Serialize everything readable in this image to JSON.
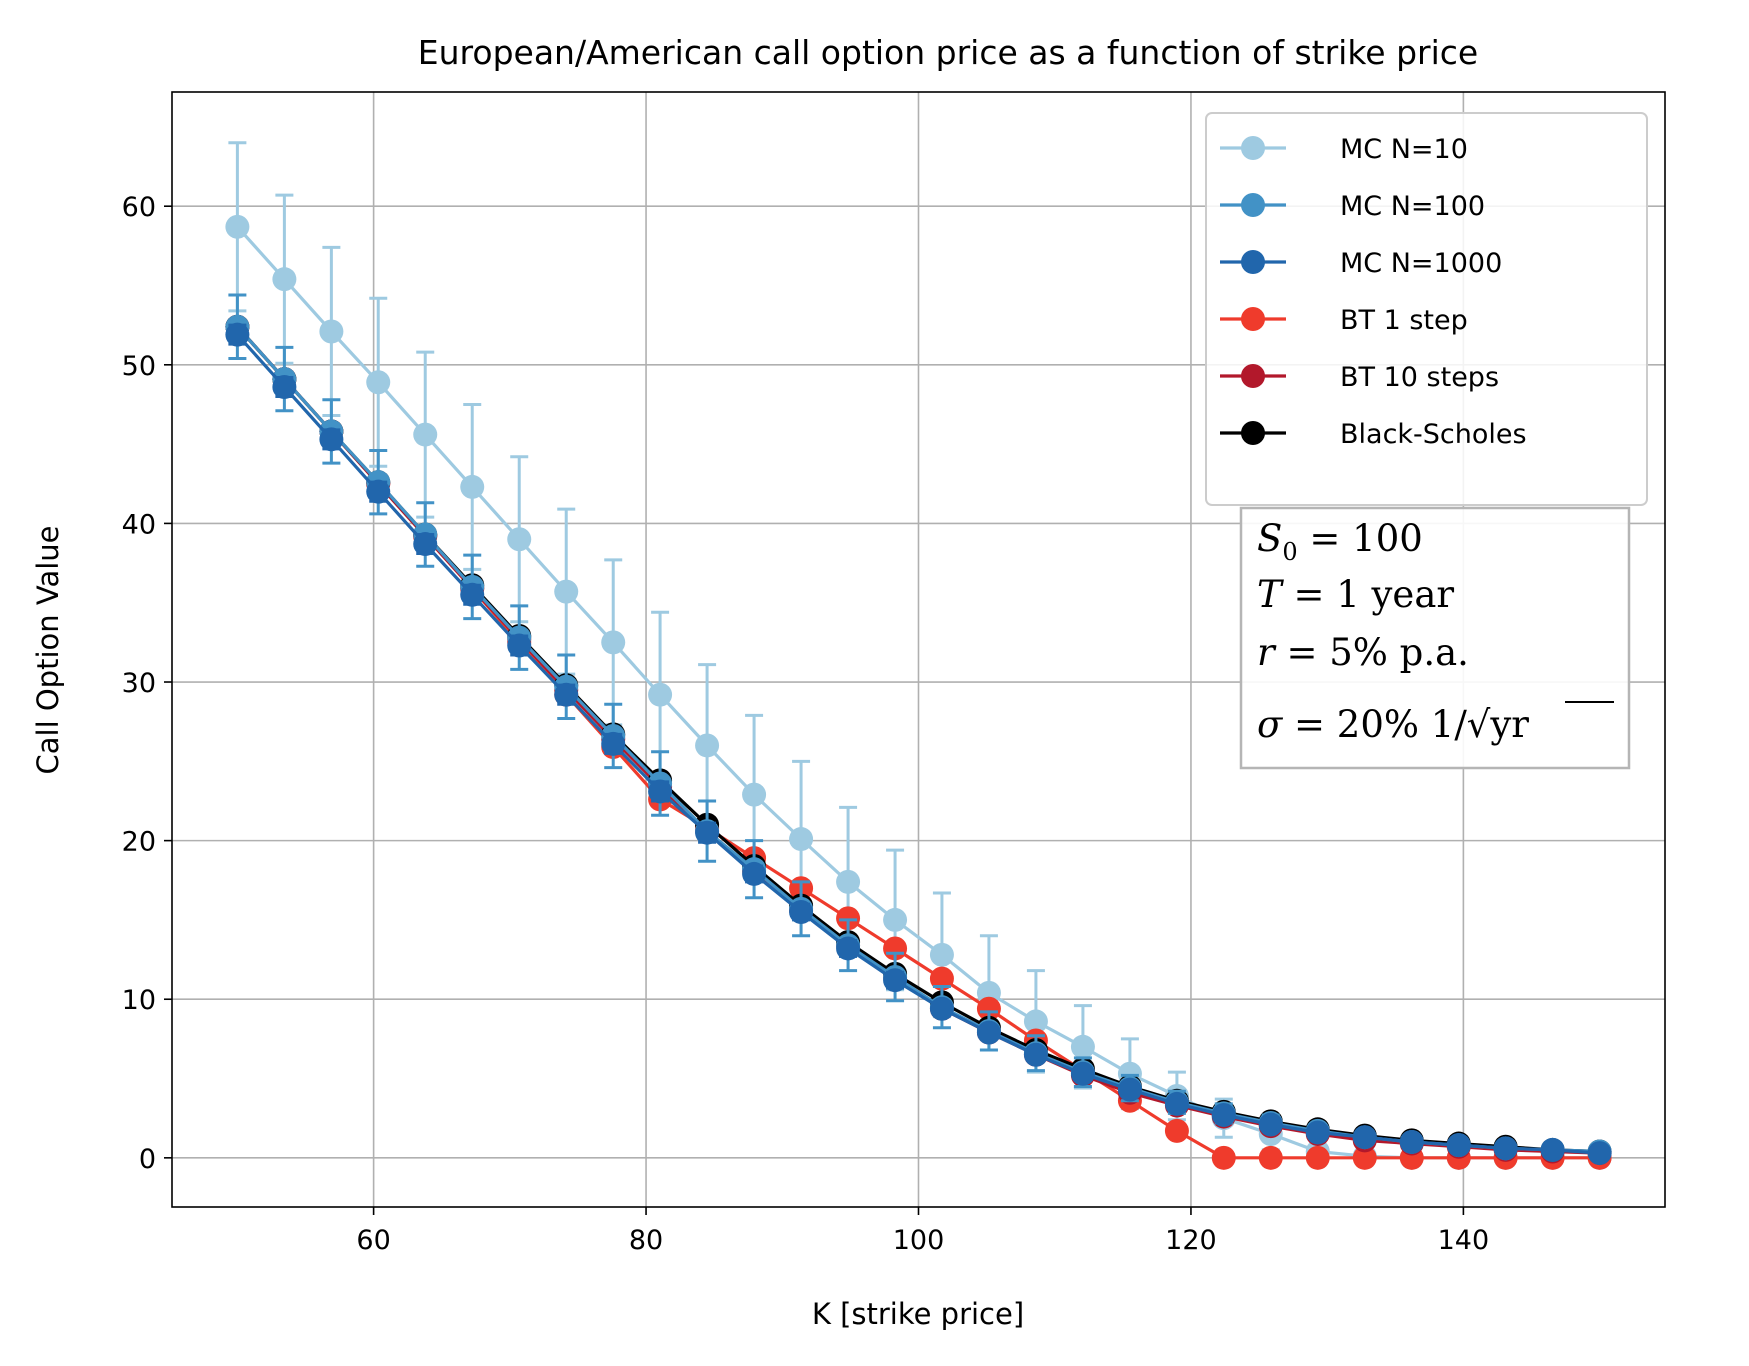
{
  "chart_data": {
    "type": "line",
    "title": "European/American call option price as a function of strike price",
    "xlabel": "K [strike price]",
    "ylabel": "Call Option Value",
    "xlim": [
      45.2,
      154.8
    ],
    "ylim": [
      -3.1,
      67.2
    ],
    "xticks": [
      60,
      80,
      100,
      120,
      140
    ],
    "yticks": [
      0,
      10,
      20,
      30,
      40,
      50,
      60
    ],
    "grid": true,
    "legend_position": "upper right",
    "x": [
      50.0,
      53.45,
      56.9,
      60.34,
      63.79,
      67.24,
      70.69,
      74.14,
      77.59,
      81.03,
      84.48,
      87.93,
      91.38,
      94.83,
      98.28,
      101.72,
      105.17,
      108.62,
      112.07,
      115.52,
      118.97,
      122.41,
      125.86,
      129.31,
      132.76,
      136.21,
      139.66,
      143.1,
      146.55,
      150.0
    ],
    "series": [
      {
        "name": "MC N=10",
        "color": "#9ecae1",
        "values": [
          58.7,
          55.4,
          52.1,
          48.9,
          45.6,
          42.3,
          39.0,
          35.7,
          32.5,
          29.2,
          26.0,
          22.9,
          20.1,
          17.4,
          15.0,
          12.8,
          10.4,
          8.6,
          7.0,
          5.3,
          3.9,
          2.5,
          1.5,
          0.4,
          0.1,
          0.0,
          0.0,
          0.0,
          0.0,
          0.0
        ],
        "errors": [
          5.3,
          5.3,
          5.3,
          5.3,
          5.2,
          5.2,
          5.2,
          5.2,
          5.2,
          5.2,
          5.1,
          5.0,
          4.9,
          4.7,
          4.4,
          3.9,
          3.6,
          3.2,
          2.6,
          2.2,
          1.5,
          1.2,
          1.0,
          0.4,
          0.2,
          0.0,
          0.0,
          0.0,
          0.0,
          0.0
        ],
        "error_bars": true
      },
      {
        "name": "MC N=100",
        "color": "#4292c6",
        "values": [
          52.4,
          49.1,
          45.8,
          42.6,
          39.3,
          36.0,
          32.8,
          29.7,
          26.6,
          23.6,
          20.6,
          18.2,
          15.7,
          13.4,
          11.4,
          9.5,
          8.0,
          6.6,
          5.4,
          4.4,
          3.5,
          2.8,
          2.2,
          1.7,
          1.3,
          1.0,
          0.8,
          0.6,
          0.5,
          0.4
        ],
        "errors": [
          2.0,
          2.0,
          2.0,
          2.0,
          2.0,
          2.0,
          2.0,
          2.0,
          2.0,
          2.0,
          1.9,
          1.8,
          1.7,
          1.6,
          1.5,
          1.3,
          1.2,
          1.1,
          0.9,
          0.8,
          0.7,
          0.6,
          0.5,
          0.4,
          0.3,
          0.2,
          0.2,
          0.2,
          0.1,
          0.1
        ],
        "error_bars": true
      },
      {
        "name": "MC N=1000",
        "color": "#2166ac",
        "values": [
          51.9,
          48.6,
          45.3,
          42.0,
          38.7,
          35.5,
          32.3,
          29.2,
          26.1,
          23.1,
          20.5,
          17.9,
          15.5,
          13.2,
          11.2,
          9.4,
          7.9,
          6.5,
          5.3,
          4.3,
          3.4,
          2.7,
          2.1,
          1.6,
          1.3,
          1.0,
          0.8,
          0.6,
          0.5,
          0.3
        ],
        "errors": [
          0.6,
          0.6,
          0.6,
          0.6,
          0.6,
          0.6,
          0.6,
          0.6,
          0.6,
          0.6,
          0.6,
          0.5,
          0.5,
          0.5,
          0.5,
          0.4,
          0.4,
          0.3,
          0.3,
          0.2,
          0.2,
          0.2,
          0.1,
          0.1,
          0.1,
          0.1,
          0.1,
          0.1,
          0.0,
          0.0
        ],
        "error_bars": true
      },
      {
        "name": "BT 1 step",
        "color": "#ef3b2c",
        "values": [
          52.4,
          49.1,
          45.8,
          42.5,
          39.2,
          35.9,
          32.5,
          29.2,
          25.9,
          22.6,
          20.8,
          18.9,
          17.0,
          15.1,
          13.2,
          11.3,
          9.4,
          7.4,
          5.5,
          3.6,
          1.7,
          0.0,
          0.0,
          0.0,
          0.0,
          0.0,
          0.0,
          0.0,
          0.0,
          0.0
        ],
        "error_bars": false
      },
      {
        "name": "BT 10 steps",
        "color": "#b2182b",
        "values": [
          52.4,
          49.1,
          45.8,
          42.5,
          39.2,
          35.9,
          32.7,
          29.5,
          26.4,
          23.4,
          20.6,
          18.1,
          15.6,
          13.4,
          11.4,
          9.4,
          7.9,
          6.5,
          5.2,
          4.1,
          3.3,
          2.6,
          2.0,
          1.5,
          1.1,
          0.9,
          0.7,
          0.5,
          0.4,
          0.3
        ],
        "error_bars": false
      },
      {
        "name": "Black-Scholes",
        "color": "#000000",
        "values": [
          52.4,
          49.1,
          45.8,
          42.6,
          39.3,
          36.1,
          32.9,
          29.8,
          26.7,
          23.8,
          21.0,
          18.4,
          15.9,
          13.6,
          11.6,
          9.8,
          8.2,
          6.8,
          5.6,
          4.5,
          3.6,
          2.9,
          2.3,
          1.8,
          1.4,
          1.1,
          0.9,
          0.7,
          0.5,
          0.4
        ],
        "error_bars": false
      }
    ],
    "annotation": {
      "lines": [
        "S_0 = 100",
        "T = 1 year",
        "r = 5% p.a.",
        "σ = 20% 1/√yr"
      ]
    }
  }
}
